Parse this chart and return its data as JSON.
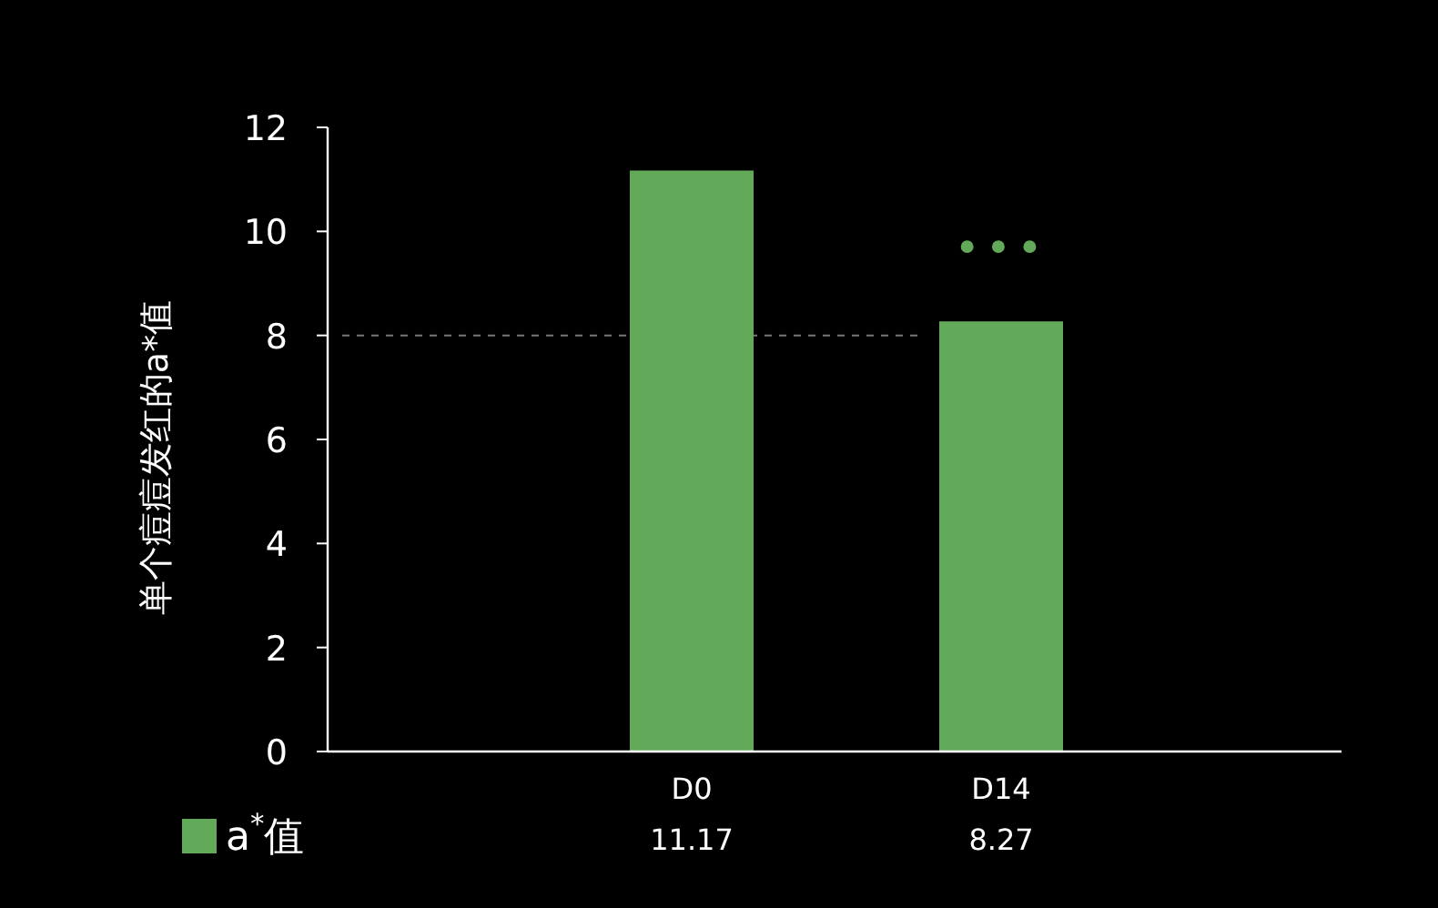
{
  "chart_data": {
    "type": "bar",
    "ylabel": "单个痘痘发红的a*值",
    "categories": [
      "D0",
      "D14"
    ],
    "series": [
      {
        "name": "a$^{*}$值",
        "color": "#62aa5a",
        "values": [
          11.17,
          8.27
        ]
      }
    ],
    "ylim": [
      0,
      12
    ],
    "yticks": [
      0,
      2,
      4,
      6,
      8,
      10,
      12
    ],
    "data_labels": true,
    "ref_lines": [
      {
        "axis": "y",
        "value": 8,
        "color": "#777777",
        "line_style": "dashed"
      }
    ],
    "annotations": [
      "•••"
    ],
    "legend": "bottom left",
    "grid": false
  }
}
